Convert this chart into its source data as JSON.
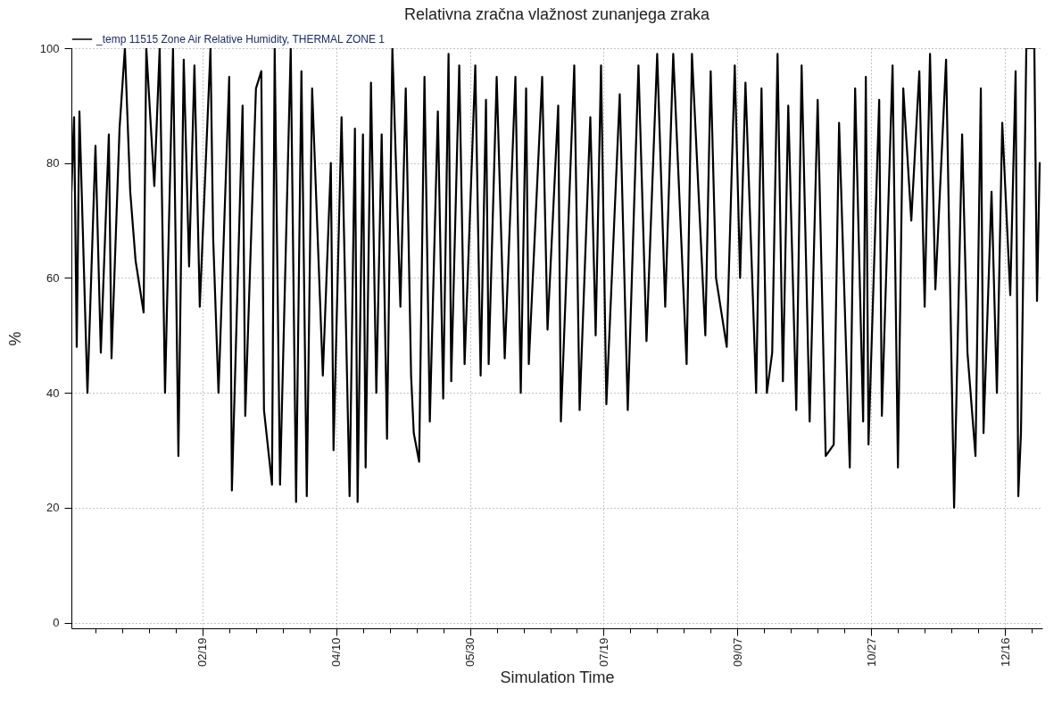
{
  "chart_data": {
    "type": "line",
    "title": "Relativna zračna vlažnost zunanjega zraka",
    "xlabel": "Simulation Time",
    "ylabel": "%",
    "x": [
      "--01-01",
      "--01-02",
      "--01-03",
      "--01-04",
      "--01-07",
      "--01-10",
      "--01-12",
      "--01-15",
      "--01-16",
      "--01-19",
      "--01-21",
      "--01-23",
      "--01-25",
      "--01-28",
      "--01-29",
      "--02-01",
      "--02-03",
      "--02-05",
      "--02-08",
      "--02-10",
      "--02-12",
      "--02-14",
      "--02-16",
      "--02-18",
      "--02-22",
      "--02-23",
      "--02-25",
      "--03-01",
      "--03-02",
      "--03-06",
      "--03-07",
      "--03-11",
      "--03-13",
      "--03-14",
      "--03-17",
      "--03-18",
      "--03-20",
      "--03-24",
      "--03-26",
      "--03-28",
      "--03-30",
      "--04-01",
      "--04-05",
      "--04-08",
      "--04-09",
      "--04-12",
      "--04-15",
      "--04-17",
      "--04-18",
      "--04-20",
      "--04-21",
      "--04-23",
      "--04-25",
      "--04-27",
      "--04-29",
      "--05-01",
      "--05-04",
      "--05-06",
      "--05-08",
      "--05-09",
      "--05-11",
      "--05-13",
      "--05-15",
      "--05-18",
      "--05-20",
      "--05-22",
      "--05-23",
      "--05-26",
      "--05-28",
      "--06-01",
      "--06-03",
      "--06-05",
      "--06-06",
      "--06-09",
      "--06-12",
      "--06-16",
      "--06-18",
      "--06-20",
      "--06-21",
      "--06-26",
      "--06-28",
      "--07-02",
      "--07-03",
      "--07-08",
      "--07-10",
      "--07-14",
      "--07-16",
      "--07-18",
      "--07-20",
      "--07-25",
      "--07-28",
      "--08-01",
      "--08-04",
      "--08-08",
      "--08-11",
      "--08-14",
      "--08-19",
      "--08-21",
      "--08-26",
      "--08-28",
      "--08-30",
      "--09-03",
      "--09-06",
      "--09-08",
      "--09-10",
      "--09-14",
      "--09-16",
      "--09-18",
      "--09-20",
      "--09-22",
      "--09-24",
      "--09-26",
      "--09-29",
      "--10-01",
      "--10-04",
      "--10-07",
      "--10-10",
      "--10-13",
      "--10-15",
      "--10-19",
      "--10-21",
      "--10-24",
      "--10-25",
      "--10-26",
      "--10-30",
      "--10-31",
      "--11-04",
      "--11-06",
      "--11-08",
      "--11-11",
      "--11-14",
      "--11-16",
      "--11-18",
      "--11-20",
      "--11-24",
      "--11-27",
      "--11-30",
      "--12-02",
      "--12-05",
      "--12-07",
      "--12-08",
      "--12-11",
      "--12-13",
      "--12-15",
      "--12-18",
      "--12-20",
      "--12-21",
      "--12-22",
      "--12-24",
      "--12-27",
      "--12-28",
      "--12-29"
    ],
    "series": [
      {
        "name": "_temp 11515 Zone Air Relative Humidity, THERMAL ZONE 1",
        "color": "#000000",
        "values": [
          75,
          88,
          48,
          89,
          40,
          83,
          47,
          85,
          46,
          86,
          100,
          75,
          63,
          54,
          100,
          76,
          100,
          40,
          100,
          29,
          98,
          62,
          97,
          55,
          100,
          67,
          40,
          95,
          23,
          90,
          36,
          93,
          96,
          37,
          24,
          100,
          24,
          100,
          21,
          96,
          22,
          93,
          43,
          80,
          30,
          88,
          22,
          86,
          21,
          85,
          27,
          94,
          40,
          85,
          32,
          100,
          55,
          93,
          43,
          33,
          28,
          95,
          35,
          89,
          39,
          99,
          42,
          97,
          45,
          97,
          43,
          91,
          45,
          95,
          46,
          95,
          40,
          93,
          45,
          95,
          51,
          90,
          35,
          97,
          37,
          88,
          50,
          97,
          38,
          92,
          37,
          97,
          49,
          99,
          55,
          99,
          45,
          99,
          50,
          96,
          60,
          48,
          97,
          60,
          94,
          40,
          93,
          40,
          47,
          99,
          42,
          90,
          37,
          97,
          35,
          91,
          29,
          31,
          87,
          27,
          93,
          35,
          95,
          31,
          91,
          36,
          97,
          27,
          93,
          70,
          96,
          55,
          99,
          58,
          98,
          20,
          85,
          47,
          29,
          93,
          33,
          75,
          40,
          87,
          57,
          96,
          22,
          33,
          100,
          100,
          56,
          80
        ]
      }
    ],
    "xlim": [
      "--01-01",
      "--12-30"
    ],
    "xticks": [
      {
        "value": "--01-10",
        "label": null
      },
      {
        "value": "--01-20",
        "label": null
      },
      {
        "value": "--01-30",
        "label": null
      },
      {
        "value": "--02-09",
        "label": null
      },
      {
        "value": "--02-19",
        "label": "02/19"
      },
      {
        "value": "--03-01",
        "label": null
      },
      {
        "value": "--03-11",
        "label": null
      },
      {
        "value": "--03-21",
        "label": null
      },
      {
        "value": "--03-31",
        "label": null
      },
      {
        "value": "--04-10",
        "label": "04/10"
      },
      {
        "value": "--04-20",
        "label": null
      },
      {
        "value": "--04-30",
        "label": null
      },
      {
        "value": "--05-10",
        "label": null
      },
      {
        "value": "--05-20",
        "label": null
      },
      {
        "value": "--05-30",
        "label": "05/30"
      },
      {
        "value": "--06-09",
        "label": null
      },
      {
        "value": "--06-19",
        "label": null
      },
      {
        "value": "--06-29",
        "label": null
      },
      {
        "value": "--07-09",
        "label": null
      },
      {
        "value": "--07-19",
        "label": "07/19"
      },
      {
        "value": "--07-29",
        "label": null
      },
      {
        "value": "--08-08",
        "label": null
      },
      {
        "value": "--08-18",
        "label": null
      },
      {
        "value": "--08-28",
        "label": null
      },
      {
        "value": "--09-07",
        "label": "09/07"
      },
      {
        "value": "--09-17",
        "label": null
      },
      {
        "value": "--09-27",
        "label": null
      },
      {
        "value": "--10-07",
        "label": null
      },
      {
        "value": "--10-17",
        "label": null
      },
      {
        "value": "--10-27",
        "label": "10/27"
      },
      {
        "value": "--11-06",
        "label": null
      },
      {
        "value": "--11-16",
        "label": null
      },
      {
        "value": "--11-26",
        "label": null
      },
      {
        "value": "--12-06",
        "label": null
      },
      {
        "value": "--12-16",
        "label": "12/16"
      },
      {
        "value": "--12-26",
        "label": null
      }
    ],
    "ylim": [
      -1,
      100
    ],
    "yticks": [
      0,
      20,
      40,
      60,
      80,
      100
    ],
    "grid": true,
    "legend": "top left",
    "marker": "none",
    "line_style": "solid"
  }
}
